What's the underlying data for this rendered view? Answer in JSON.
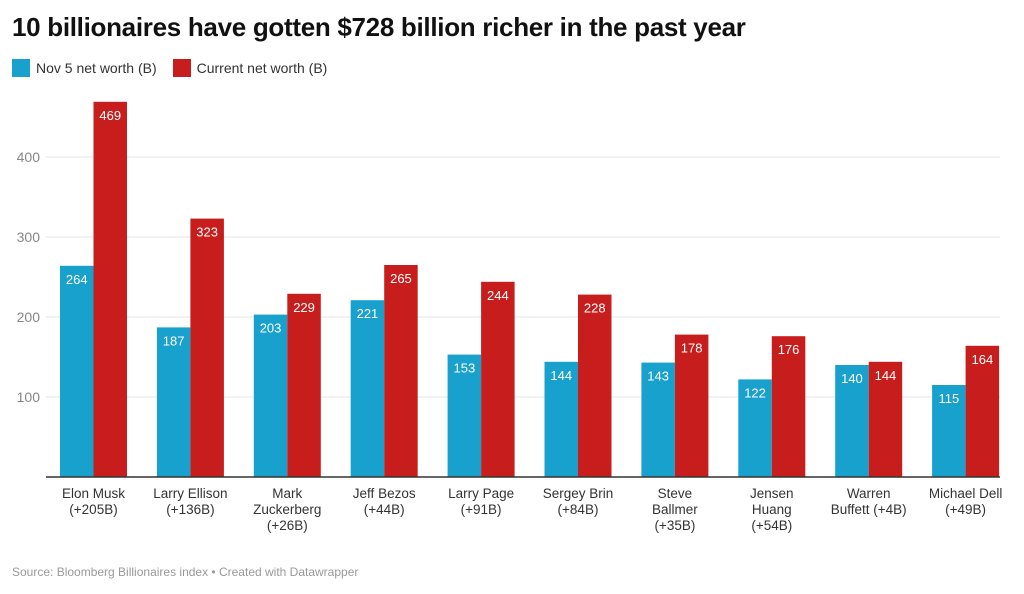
{
  "chart_data": {
    "type": "bar",
    "title": "10 billionaires have gotten $728 billion richer in the past year",
    "categories": [
      [
        "Elon Musk",
        "(+205B)"
      ],
      [
        "Larry Ellison",
        "(+136B)"
      ],
      [
        "Mark",
        "Zuckerberg",
        "(+26B)"
      ],
      [
        "Jeff Bezos",
        "(+44B)"
      ],
      [
        "Larry Page",
        "(+91B)"
      ],
      [
        "Sergey Brin",
        "(+84B)"
      ],
      [
        "Steve",
        "Ballmer",
        "(+35B)"
      ],
      [
        "Jensen",
        "Huang",
        "(+54B)"
      ],
      [
        "Warren",
        "Buffett (+4B)"
      ],
      [
        "Michael Dell",
        "(+49B)"
      ]
    ],
    "series": [
      {
        "name": "Nov 5 net worth (B)",
        "color": "#18a1cd",
        "values": [
          264,
          187,
          203,
          221,
          153,
          144,
          143,
          122,
          140,
          115
        ]
      },
      {
        "name": "Current net worth (B)",
        "color": "#c71e1d",
        "values": [
          469,
          323,
          229,
          265,
          244,
          228,
          178,
          176,
          144,
          164
        ]
      }
    ],
    "yticks": [
      100,
      200,
      300,
      400
    ],
    "ylim": [
      0,
      500
    ],
    "grid": true,
    "legend": "top-left",
    "data_labels": true
  },
  "footer": "Source: Bloomberg Billionaires index • Created with Datawrapper"
}
